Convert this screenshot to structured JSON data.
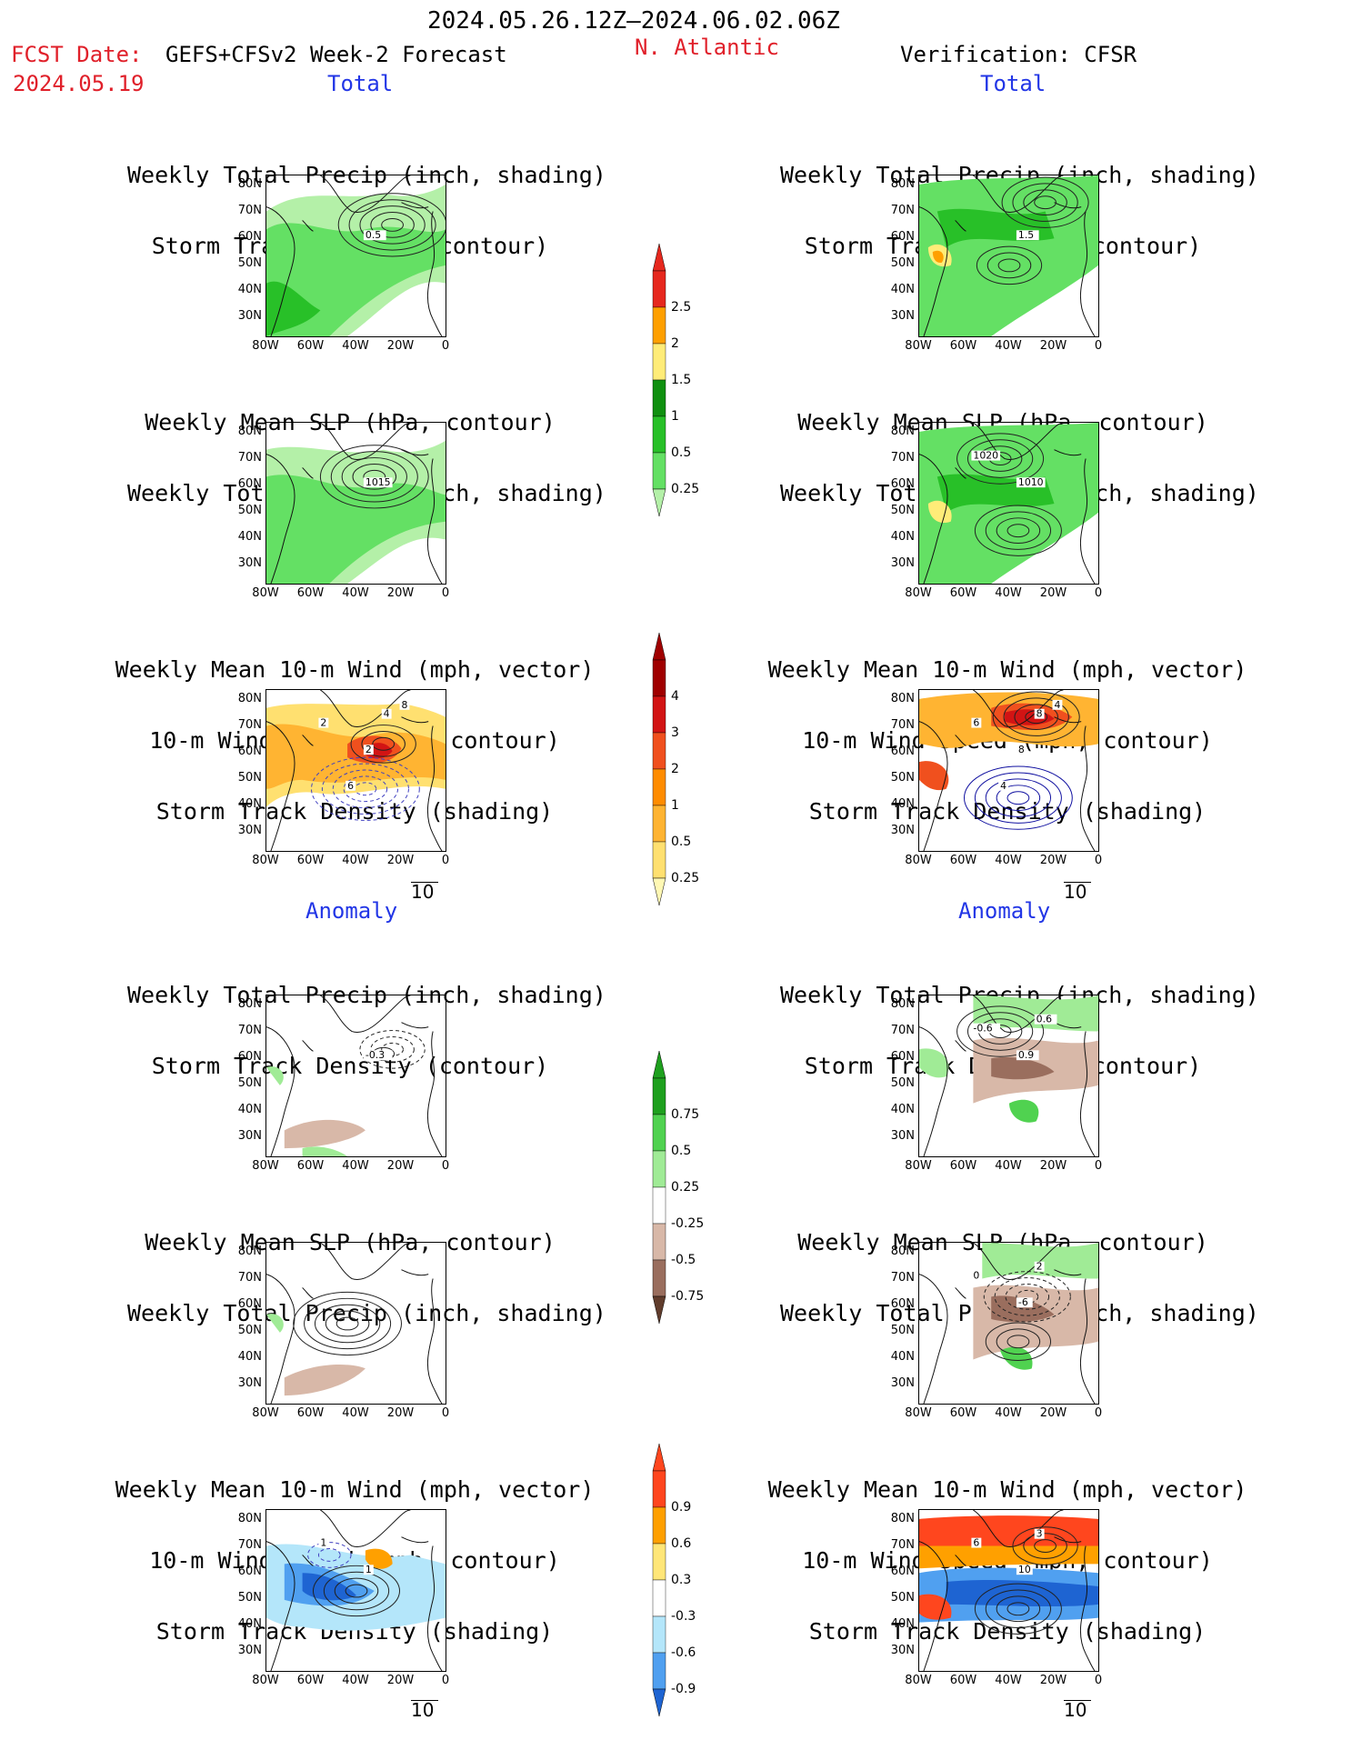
{
  "header": {
    "date_range": "2024.05.26.12Z–2024.06.02.06Z",
    "fcst_label": "FCST Date:",
    "product": "GEFS+CFSv2 Week-2 Forecast",
    "fcst_date": "2024.05.19",
    "region": "N. Atlantic",
    "verification": "Verification: CFSR"
  },
  "sections": {
    "total": "Total",
    "anomaly": "Anomaly"
  },
  "titles": {
    "precip_storm": [
      "Weekly Total Precip (inch, shading)",
      "Storm Track Density (contour)"
    ],
    "slp_precip": [
      "Weekly Mean SLP (hPa, contour)",
      "Weekly Total Precip (inch, shading)"
    ],
    "wind_storm": [
      "Weekly Mean 10-m Wind (mph, vector)",
      "10-m Wind Speed (mph, contour)",
      "Storm Track Density (shading)"
    ]
  },
  "axes": {
    "lat_labels": [
      "80N",
      "70N",
      "60N",
      "50N",
      "40N",
      "30N"
    ],
    "lon_labels": [
      "80W",
      "60W",
      "40W",
      "20W",
      "0"
    ]
  },
  "vector_ref": "10",
  "contour_labels": {
    "fc_total_precip": "0.5",
    "fc_total_slp": "1015",
    "fc_total_wind": [
      "2",
      "2",
      "4",
      "6",
      "8"
    ],
    "ver_total_precip": "1.5",
    "ver_total_slp": [
      "1010",
      "1020"
    ],
    "ver_total_wind": [
      "8",
      "6",
      "8",
      "4",
      "4"
    ],
    "fc_anom_precip": "-0.3",
    "ver_anom_precip": [
      "0.9",
      "-0.6",
      "0.6"
    ],
    "ver_anom_slp": [
      "-6",
      "0",
      "2"
    ],
    "fc_anom_wind": [
      "1",
      "1"
    ],
    "ver_anom_wind": [
      "10",
      "6",
      "3"
    ]
  },
  "colorbars": {
    "precip_total": [
      "0.25",
      "0.5",
      "1",
      "1.5",
      "2",
      "2.5"
    ],
    "storm_total": [
      "0.25",
      "0.5",
      "1",
      "2",
      "3",
      "4"
    ],
    "precip_anom": [
      "-0.75",
      "-0.5",
      "-0.25",
      "0.25",
      "0.5",
      "0.75"
    ],
    "storm_anom": [
      "-0.9",
      "-0.6",
      "-0.3",
      "0.3",
      "0.6",
      "0.9"
    ]
  },
  "colors": {
    "red_text": "#e0202a",
    "blue_text": "#2236e6",
    "precip_scale": [
      "#b4f0a8",
      "#64e064",
      "#28c028",
      "#109010",
      "#ffec78",
      "#ffa000",
      "#e6281e"
    ],
    "storm_scale": [
      "#fff8b4",
      "#ffe070",
      "#ffb432",
      "#ff8c00",
      "#f0501e",
      "#d21414",
      "#a00000"
    ],
    "precip_anom_scale": [
      "#603c2c",
      "#9a6e5e",
      "#d8b8a8",
      "#ffffff",
      "#a0eb96",
      "#50d250",
      "#1ea01e"
    ],
    "storm_anom_scale": [
      "#1e64d2",
      "#50a0f0",
      "#b4e6fa",
      "#ffffff",
      "#ffe678",
      "#ffa000",
      "#ff461e"
    ]
  }
}
